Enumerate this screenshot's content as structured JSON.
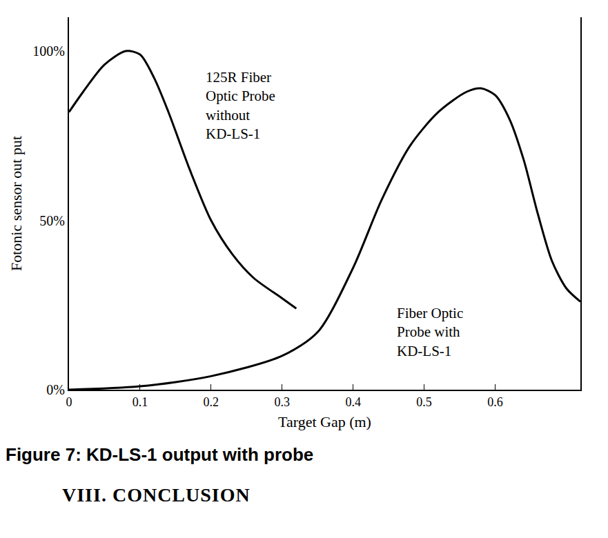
{
  "chart_data": {
    "type": "line",
    "x_label": "Target Gap (m)",
    "y_label": "Fotonic sensor out put",
    "series": [
      {
        "name": "125R Fiber Optic Probe without KD-LS-1",
        "color": "#000000",
        "x": [
          0,
          0.02,
          0.05,
          0.08,
          0.1,
          0.12,
          0.14,
          0.17,
          0.2,
          0.23,
          0.26,
          0.3,
          0.32
        ],
        "values": [
          82,
          88,
          96,
          100,
          99,
          92,
          82,
          65,
          50,
          40,
          33,
          27,
          24
        ]
      },
      {
        "name": "Fiber Optic Probe with KD-LS-1",
        "color": "#000000",
        "x": [
          0,
          0.1,
          0.2,
          0.3,
          0.35,
          0.4,
          0.44,
          0.48,
          0.52,
          0.56,
          0.58,
          0.6,
          0.62,
          0.64,
          0.66,
          0.68,
          0.7,
          0.72
        ],
        "values": [
          0,
          1,
          4,
          10,
          17,
          36,
          56,
          72,
          82,
          88,
          89,
          87,
          80,
          68,
          52,
          38,
          30,
          26
        ]
      }
    ],
    "annotations": [
      {
        "text": "125R Fiber Optic Probe without KD-LS-1",
        "x": 0.19,
        "y": 84
      },
      {
        "text": "Fiber Optic Probe with KD-LS-1",
        "x": 0.46,
        "y": 17
      }
    ],
    "xlim": [
      0,
      0.72
    ],
    "xticks": [
      0,
      0.1,
      0.2,
      0.3,
      0.4,
      0.5,
      0.6
    ],
    "ylim": [
      0,
      110
    ],
    "yticks": [
      {
        "value": 0,
        "label": "0%"
      },
      {
        "value": 50,
        "label": "50%"
      },
      {
        "value": 100,
        "label": "100%"
      }
    ],
    "grid": false
  },
  "caption": "Figure 7: KD-LS-1 output with probe",
  "heading": "VIII. CONCLUSION"
}
